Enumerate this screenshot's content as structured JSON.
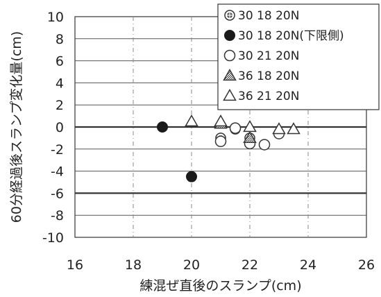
{
  "chart_data": {
    "type": "scatter",
    "xlabel": "練混ぜ直後のスランプ(cm)",
    "ylabel": "60分経過後スランプ変化量(cm)",
    "xlim": [
      16,
      26
    ],
    "ylim": [
      -10,
      10
    ],
    "x_ticks": [
      16,
      18,
      20,
      22,
      24,
      26
    ],
    "y_ticks": [
      10,
      8,
      6,
      4,
      2,
      0,
      -2,
      -4,
      -6,
      -8,
      -10
    ],
    "grid": true,
    "legend_position": "top-right",
    "reference_lines": [
      0,
      -6
    ],
    "series": [
      {
        "name": "30 18 20N",
        "marker": "circle-cross",
        "points": [
          [
            21.0,
            -1.0
          ],
          [
            21.5,
            -0.2
          ],
          [
            22.0,
            -1.0
          ]
        ]
      },
      {
        "name": "30 18 20N(下限側)",
        "marker": "circle-filled",
        "points": [
          [
            19.0,
            0.0
          ],
          [
            20.0,
            -4.5
          ]
        ]
      },
      {
        "name": "30 21 20N",
        "marker": "circle-open",
        "points": [
          [
            21.5,
            -0.1
          ],
          [
            22.0,
            -1.5
          ],
          [
            22.5,
            -1.6
          ],
          [
            23.0,
            -0.6
          ],
          [
            21.0,
            -1.3
          ]
        ]
      },
      {
        "name": "36 18 20N",
        "marker": "triangle-hatched",
        "points": [
          [
            21.0,
            0.3
          ],
          [
            22.0,
            -1.0
          ]
        ]
      },
      {
        "name": "36 21 20N",
        "marker": "triangle-open",
        "points": [
          [
            20.0,
            0.5
          ],
          [
            21.0,
            0.5
          ],
          [
            22.0,
            0.0
          ],
          [
            23.0,
            -0.2
          ],
          [
            23.5,
            -0.2
          ]
        ]
      }
    ]
  }
}
